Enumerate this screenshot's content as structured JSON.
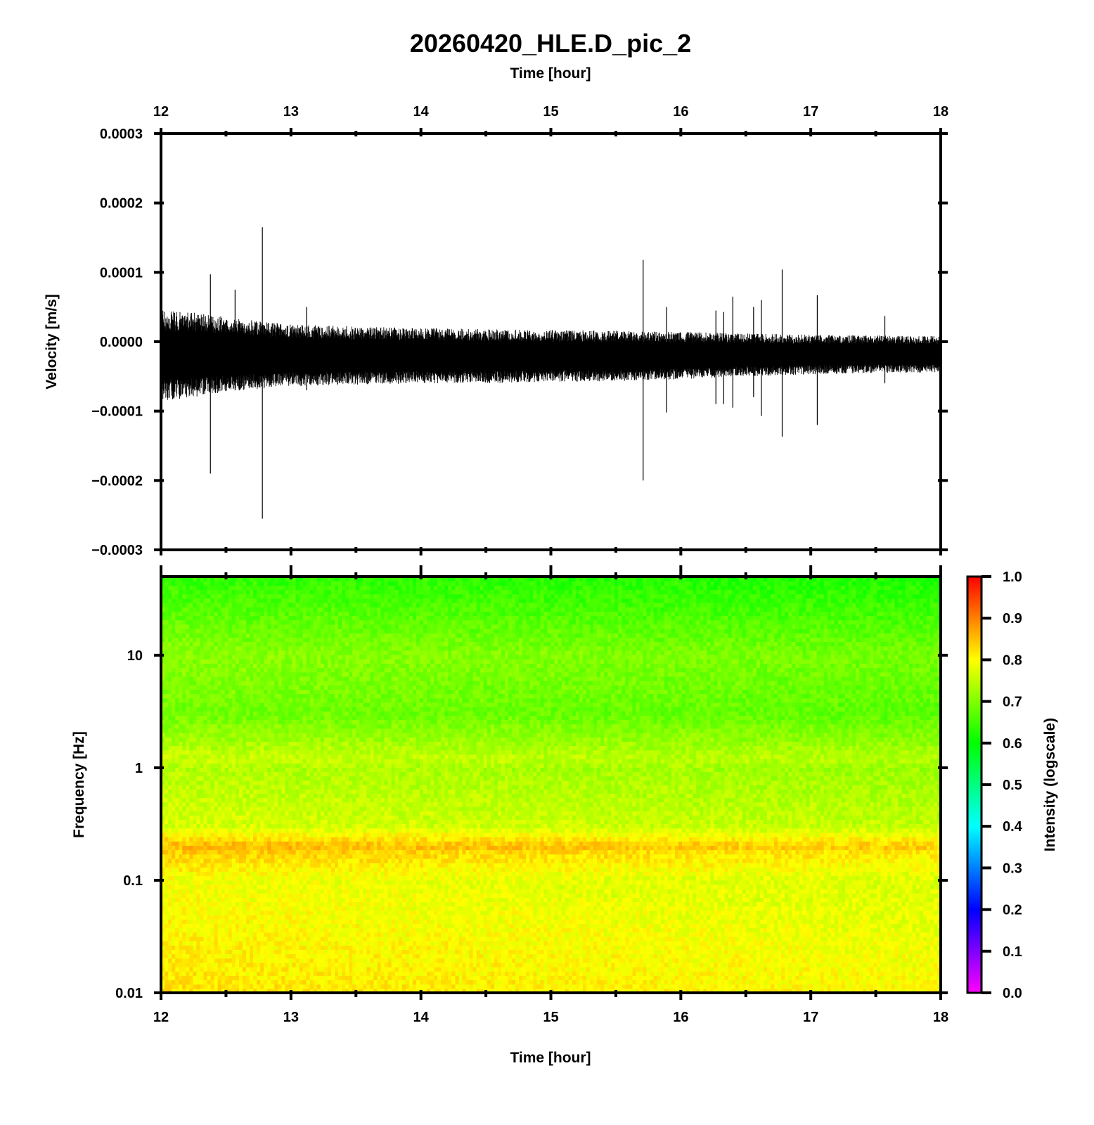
{
  "chart_data": [
    {
      "type": "line",
      "title": "20260420_HLE.D_pic_2",
      "xlabel": "Time [hour]",
      "ylabel": "Velocity [m/s]",
      "xlim": [
        12,
        18
      ],
      "ylim": [
        -0.0003,
        0.0003
      ],
      "x_ticks": [
        "12",
        "13",
        "14",
        "15",
        "16",
        "17",
        "18"
      ],
      "y_ticks": [
        "0.0003",
        "0.0002",
        "0.0001",
        "0.0000",
        "−0.0001",
        "−0.0002",
        "−0.0003"
      ],
      "series": [
        {
          "description_values": "noise envelope (upper/lower, m/s) at hour",
          "x": [
            12.0,
            12.25,
            12.5,
            12.75,
            13.0,
            13.5,
            14.0,
            14.5,
            15.0,
            15.5,
            16.0,
            16.5,
            17.0,
            17.5,
            18.0
          ],
          "upper": [
            4.5e-05,
            4.2e-05,
            3.6e-05,
            3e-05,
            2.5e-05,
            2.2e-05,
            2e-05,
            1.8e-05,
            1.7e-05,
            1.6e-05,
            1.4e-05,
            1.2e-05,
            1e-05,
            9e-06,
            8e-06
          ],
          "lower": [
            -8.5e-05,
            -8e-05,
            -7.2e-05,
            -6.8e-05,
            -6.4e-05,
            -6.2e-05,
            -6e-05,
            -6e-05,
            -5.8e-05,
            -5.7e-05,
            -5.4e-05,
            -5e-05,
            -4.7e-05,
            -4.5e-05,
            -4.4e-05
          ]
        }
      ],
      "spikes": [
        {
          "x": 12.38,
          "ymax": 9.7e-05,
          "ymin": -0.00019
        },
        {
          "x": 12.57,
          "ymax": 7.5e-05,
          "ymin": -7e-05
        },
        {
          "x": 12.78,
          "ymax": 0.000165,
          "ymin": -0.000255
        },
        {
          "x": 13.12,
          "ymax": 5e-05,
          "ymin": -7e-05
        },
        {
          "x": 15.71,
          "ymax": 0.000118,
          "ymin": -0.0002
        },
        {
          "x": 15.89,
          "ymax": 5e-05,
          "ymin": -0.000102
        },
        {
          "x": 16.27,
          "ymax": 4.5e-05,
          "ymin": -9e-05
        },
        {
          "x": 16.33,
          "ymax": 4.3e-05,
          "ymin": -9e-05
        },
        {
          "x": 16.4,
          "ymax": 6.5e-05,
          "ymin": -9.5e-05
        },
        {
          "x": 16.56,
          "ymax": 5e-05,
          "ymin": -8e-05
        },
        {
          "x": 16.62,
          "ymax": 6e-05,
          "ymin": -0.000107
        },
        {
          "x": 16.78,
          "ymax": 0.000104,
          "ymin": -0.000137
        },
        {
          "x": 17.05,
          "ymax": 6.7e-05,
          "ymin": -0.00012
        },
        {
          "x": 17.57,
          "ymax": 3.7e-05,
          "ymin": -6e-05
        }
      ]
    },
    {
      "type": "heatmap",
      "xlabel": "Time [hour]",
      "ylabel": "Frequency [Hz]",
      "xlim": [
        12,
        18
      ],
      "ylim": [
        0.01,
        50
      ],
      "yscale": "log",
      "x_ticks": [
        "12",
        "13",
        "14",
        "15",
        "16",
        "17",
        "18"
      ],
      "y_ticks": [
        "10",
        "1",
        "0.1",
        "0.01"
      ],
      "intensity_profile": {
        "frequency_hz": [
          0.01,
          0.05,
          0.1,
          0.18,
          0.2,
          0.22,
          0.3,
          1,
          1.2,
          3,
          10,
          30,
          50
        ],
        "intensity": [
          0.82,
          0.8,
          0.79,
          0.84,
          0.86,
          0.84,
          0.77,
          0.74,
          0.76,
          0.69,
          0.71,
          0.66,
          0.64
        ]
      },
      "colorbar": {
        "label": "Intensity (logscale)",
        "range": [
          0.0,
          1.0
        ],
        "ticks": [
          "1.0",
          "0.9",
          "0.8",
          "0.7",
          "0.6",
          "0.5",
          "0.4",
          "0.3",
          "0.2",
          "0.1",
          "0.0"
        ],
        "colormap_stops": [
          "#ff00ff",
          "#0000ff",
          "#00ffff",
          "#00ff00",
          "#ffff00",
          "#ff0000"
        ]
      }
    }
  ]
}
